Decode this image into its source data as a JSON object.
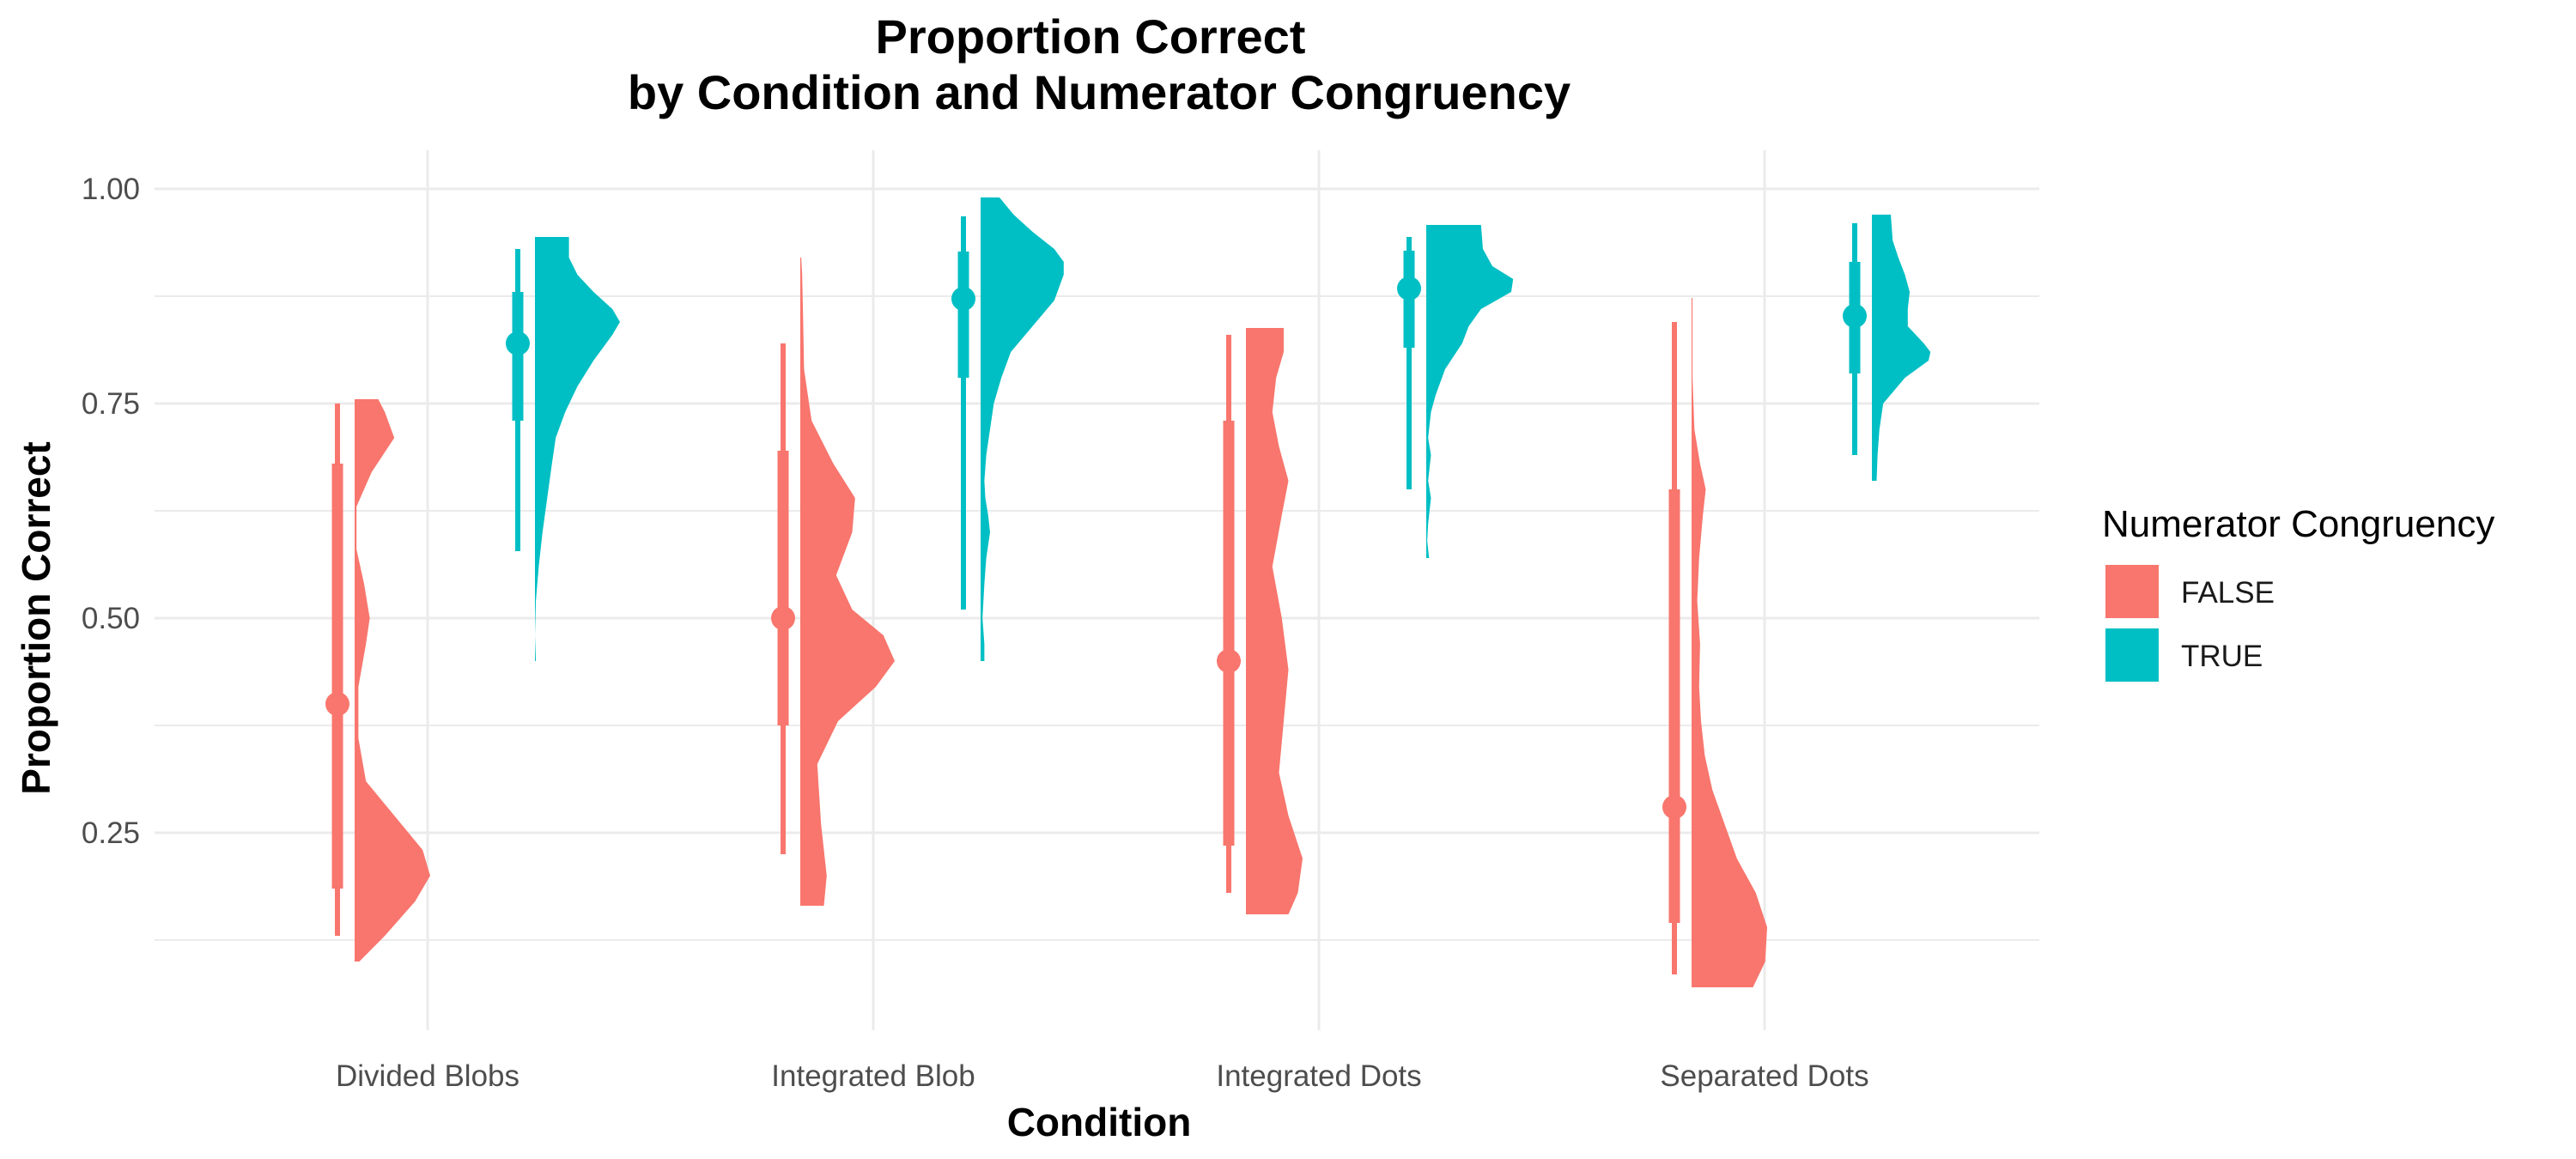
{
  "chart_data": {
    "type": "raincloud",
    "title": [
      "Proportion Correct",
      "by Condition and Numerator Congruency"
    ],
    "xlabel": "Condition",
    "ylabel": "Proportion Correct",
    "categories": [
      "Divided Blobs",
      "Integrated Blob",
      "Integrated Dots",
      "Separated Dots"
    ],
    "ylim": [
      0.02,
      1.045
    ],
    "yticks": [
      0.25,
      0.5,
      0.75,
      1.0
    ],
    "ytick_labels": [
      "0.25",
      "0.50",
      "0.75",
      "1.00"
    ],
    "grid": true,
    "legend": {
      "title": "Numerator Congruency",
      "position": "right",
      "entries": [
        {
          "label": "FALSE",
          "color": "#F8766D"
        },
        {
          "label": "TRUE",
          "color": "#00BFC4"
        }
      ]
    },
    "series": [
      {
        "name": "FALSE",
        "color": "#F8766D",
        "groups": [
          {
            "category": "Divided Blobs",
            "point": 0.4,
            "interval_thick": [
              0.185,
              0.68
            ],
            "interval_thin": [
              0.13,
              0.75
            ],
            "density_range": [
              0.1,
              0.755
            ],
            "density": [
              [
                0.1,
                0.05
              ],
              [
                0.13,
                0.32
              ],
              [
                0.17,
                0.64
              ],
              [
                0.2,
                0.8
              ],
              [
                0.23,
                0.72
              ],
              [
                0.27,
                0.42
              ],
              [
                0.31,
                0.12
              ],
              [
                0.36,
                0.04
              ],
              [
                0.42,
                0.04
              ],
              [
                0.47,
                0.12
              ],
              [
                0.5,
                0.16
              ],
              [
                0.54,
                0.1
              ],
              [
                0.58,
                0.02
              ],
              [
                0.63,
                0.02
              ],
              [
                0.67,
                0.18
              ],
              [
                0.71,
                0.42
              ],
              [
                0.74,
                0.32
              ],
              [
                0.755,
                0.25
              ]
            ]
          },
          {
            "category": "Integrated Blob",
            "point": 0.5,
            "interval_thick": [
              0.375,
              0.695
            ],
            "interval_thin": [
              0.225,
              0.82
            ],
            "density_range": [
              0.165,
              0.92
            ],
            "density": [
              [
                0.165,
                0.25
              ],
              [
                0.2,
                0.28
              ],
              [
                0.26,
                0.22
              ],
              [
                0.33,
                0.18
              ],
              [
                0.38,
                0.4
              ],
              [
                0.42,
                0.8
              ],
              [
                0.45,
                1.0
              ],
              [
                0.48,
                0.88
              ],
              [
                0.51,
                0.55
              ],
              [
                0.55,
                0.38
              ],
              [
                0.6,
                0.55
              ],
              [
                0.64,
                0.58
              ],
              [
                0.68,
                0.35
              ],
              [
                0.73,
                0.12
              ],
              [
                0.79,
                0.04
              ],
              [
                0.85,
                0.03
              ],
              [
                0.9,
                0.02
              ],
              [
                0.92,
                0.01
              ]
            ]
          },
          {
            "category": "Integrated Dots",
            "point": 0.45,
            "interval_thick": [
              0.235,
              0.73
            ],
            "interval_thin": [
              0.18,
              0.83
            ],
            "density_range": [
              0.155,
              0.838
            ],
            "density": [
              [
                0.155,
                0.45
              ],
              [
                0.18,
                0.55
              ],
              [
                0.22,
                0.6
              ],
              [
                0.27,
                0.45
              ],
              [
                0.32,
                0.35
              ],
              [
                0.38,
                0.4
              ],
              [
                0.44,
                0.45
              ],
              [
                0.5,
                0.38
              ],
              [
                0.56,
                0.28
              ],
              [
                0.62,
                0.38
              ],
              [
                0.66,
                0.45
              ],
              [
                0.7,
                0.35
              ],
              [
                0.74,
                0.28
              ],
              [
                0.78,
                0.32
              ],
              [
                0.81,
                0.4
              ],
              [
                0.838,
                0.4
              ]
            ]
          },
          {
            "category": "Separated Dots",
            "point": 0.28,
            "interval_thick": [
              0.145,
              0.65
            ],
            "interval_thin": [
              0.085,
              0.845
            ],
            "density_range": [
              0.07,
              0.873
            ],
            "density": [
              [
                0.07,
                0.65
              ],
              [
                0.1,
                0.78
              ],
              [
                0.14,
                0.8
              ],
              [
                0.18,
                0.68
              ],
              [
                0.22,
                0.48
              ],
              [
                0.26,
                0.35
              ],
              [
                0.3,
                0.22
              ],
              [
                0.34,
                0.14
              ],
              [
                0.38,
                0.1
              ],
              [
                0.42,
                0.08
              ],
              [
                0.47,
                0.09
              ],
              [
                0.52,
                0.06
              ],
              [
                0.57,
                0.08
              ],
              [
                0.62,
                0.12
              ],
              [
                0.65,
                0.15
              ],
              [
                0.68,
                0.09
              ],
              [
                0.72,
                0.03
              ],
              [
                0.78,
                0.01
              ],
              [
                0.85,
                0.01
              ],
              [
                0.873,
                0.01
              ]
            ]
          }
        ]
      },
      {
        "name": "TRUE",
        "color": "#00BFC4",
        "groups": [
          {
            "category": "Divided Blobs",
            "point": 0.82,
            "interval_thick": [
              0.73,
              0.88
            ],
            "interval_thin": [
              0.578,
              0.93
            ],
            "density_range": [
              0.45,
              0.944
            ],
            "density": [
              [
                0.45,
                0.01
              ],
              [
                0.48,
                0.0
              ],
              [
                0.52,
                0.01
              ],
              [
                0.56,
                0.04
              ],
              [
                0.6,
                0.08
              ],
              [
                0.64,
                0.13
              ],
              [
                0.68,
                0.18
              ],
              [
                0.71,
                0.22
              ],
              [
                0.74,
                0.32
              ],
              [
                0.77,
                0.45
              ],
              [
                0.8,
                0.62
              ],
              [
                0.83,
                0.82
              ],
              [
                0.845,
                0.9
              ],
              [
                0.86,
                0.82
              ],
              [
                0.88,
                0.62
              ],
              [
                0.9,
                0.45
              ],
              [
                0.92,
                0.36
              ],
              [
                0.944,
                0.36
              ]
            ]
          },
          {
            "category": "Integrated Blob",
            "point": 0.872,
            "interval_thick": [
              0.78,
              0.927
            ],
            "interval_thin": [
              0.51,
              0.968
            ],
            "density_range": [
              0.45,
              0.99
            ],
            "density": [
              [
                0.45,
                0.04
              ],
              [
                0.47,
                0.04
              ],
              [
                0.5,
                0.02
              ],
              [
                0.54,
                0.04
              ],
              [
                0.57,
                0.06
              ],
              [
                0.6,
                0.1
              ],
              [
                0.62,
                0.08
              ],
              [
                0.64,
                0.05
              ],
              [
                0.66,
                0.04
              ],
              [
                0.69,
                0.06
              ],
              [
                0.72,
                0.1
              ],
              [
                0.75,
                0.14
              ],
              [
                0.78,
                0.22
              ],
              [
                0.81,
                0.32
              ],
              [
                0.84,
                0.55
              ],
              [
                0.87,
                0.78
              ],
              [
                0.9,
                0.88
              ],
              [
                0.915,
                0.88
              ],
              [
                0.93,
                0.78
              ],
              [
                0.95,
                0.55
              ],
              [
                0.97,
                0.35
              ],
              [
                0.99,
                0.2
              ]
            ]
          },
          {
            "category": "Integrated Dots",
            "point": 0.884,
            "interval_thick": [
              0.815,
              0.928
            ],
            "interval_thin": [
              0.65,
              0.944
            ],
            "density_range": [
              0.57,
              0.958
            ],
            "density": [
              [
                0.57,
                0.03
              ],
              [
                0.59,
                0.01
              ],
              [
                0.61,
                0.02
              ],
              [
                0.64,
                0.05
              ],
              [
                0.66,
                0.02
              ],
              [
                0.69,
                0.05
              ],
              [
                0.71,
                0.02
              ],
              [
                0.74,
                0.05
              ],
              [
                0.76,
                0.1
              ],
              [
                0.79,
                0.2
              ],
              [
                0.82,
                0.38
              ],
              [
                0.84,
                0.45
              ],
              [
                0.86,
                0.58
              ],
              [
                0.88,
                0.9
              ],
              [
                0.895,
                0.92
              ],
              [
                0.91,
                0.7
              ],
              [
                0.93,
                0.6
              ],
              [
                0.958,
                0.58
              ]
            ]
          },
          {
            "category": "Separated Dots",
            "point": 0.852,
            "interval_thick": [
              0.785,
              0.915
            ],
            "interval_thin": [
              0.69,
              0.96
            ],
            "density_range": [
              0.66,
              0.97
            ],
            "density": [
              [
                0.66,
                0.05
              ],
              [
                0.69,
                0.06
              ],
              [
                0.72,
                0.08
              ],
              [
                0.75,
                0.12
              ],
              [
                0.78,
                0.35
              ],
              [
                0.8,
                0.6
              ],
              [
                0.81,
                0.62
              ],
              [
                0.82,
                0.55
              ],
              [
                0.84,
                0.38
              ],
              [
                0.86,
                0.38
              ],
              [
                0.88,
                0.4
              ],
              [
                0.9,
                0.35
              ],
              [
                0.92,
                0.28
              ],
              [
                0.94,
                0.22
              ],
              [
                0.97,
                0.2
              ]
            ]
          }
        ]
      }
    ]
  }
}
